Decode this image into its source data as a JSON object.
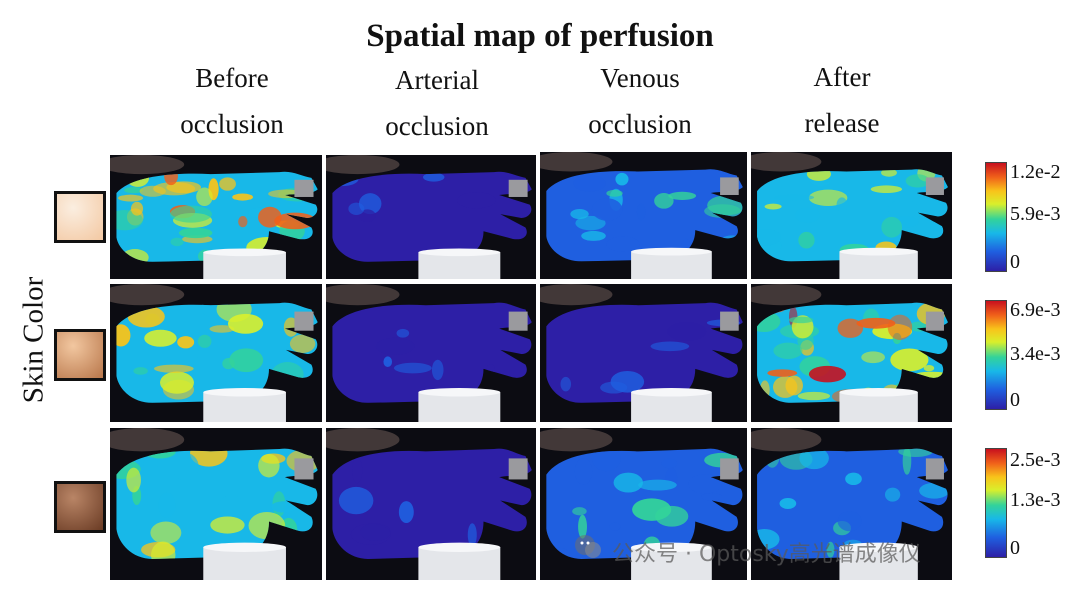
{
  "title": "Spatial map of perfusion",
  "columns": [
    {
      "line1": "Before",
      "line2": "occlusion"
    },
    {
      "line1": "Arterial",
      "line2": "occlusion"
    },
    {
      "line1": "Venous",
      "line2": "occlusion"
    },
    {
      "line1": "After",
      "line2": "release"
    }
  ],
  "side_label": "Skin Color",
  "rows": [
    {
      "swatch_colors": [
        "#fbeee0",
        "#f3c8a2"
      ],
      "colorbar_ticks": {
        "max": "1.2e-2",
        "mid": "5.9e-3",
        "min": "0"
      },
      "panel_tones": [
        "hot",
        "cold",
        "cool",
        "warm"
      ]
    },
    {
      "swatch_colors": [
        "#f2c7a0",
        "#b8764a"
      ],
      "colorbar_ticks": {
        "max": "6.9e-3",
        "mid": "3.4e-3",
        "min": "0"
      },
      "panel_tones": [
        "warm",
        "cold",
        "cold",
        "hot"
      ]
    },
    {
      "swatch_colors": [
        "#b98566",
        "#6a3b24"
      ],
      "colorbar_ticks": {
        "max": "2.5e-3",
        "mid": "1.3e-3",
        "min": "0"
      },
      "panel_tones": [
        "warm",
        "cold",
        "cool",
        "cool"
      ]
    }
  ],
  "colormap": [
    "#2d1fa6",
    "#1f5fe0",
    "#18b8e8",
    "#33d39a",
    "#d9ef2c",
    "#f8c41a",
    "#f0601a",
    "#c8101e"
  ],
  "watermark": "公众号 · Optosky高光谱成像仪"
}
